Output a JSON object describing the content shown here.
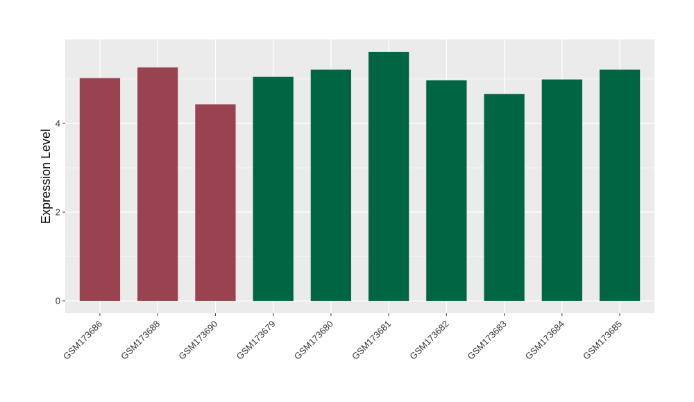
{
  "chart_data": {
    "type": "bar",
    "title": "",
    "xlabel": "",
    "ylabel": "Expression Level",
    "categories": [
      "GSM173686",
      "GSM173688",
      "GSM173690",
      "GSM173679",
      "GSM173680",
      "GSM173681",
      "GSM173682",
      "GSM173683",
      "GSM173684",
      "GSM173685"
    ],
    "values": [
      5.02,
      5.26,
      4.43,
      5.05,
      5.21,
      5.61,
      4.97,
      4.66,
      4.99,
      5.21
    ],
    "group": [
      "a",
      "a",
      "a",
      "b",
      "b",
      "b",
      "b",
      "b",
      "b",
      "b"
    ],
    "group_colors": {
      "a": "#9a4350",
      "b": "#006543"
    },
    "yticks": [
      0,
      2,
      4
    ],
    "ytick_labels": [
      "0",
      "2",
      "4"
    ],
    "ylim": [
      -0.28,
      5.89
    ],
    "grid": true,
    "legend": "none",
    "panel_background": "#ebebeb",
    "grid_color": "#ffffff"
  }
}
